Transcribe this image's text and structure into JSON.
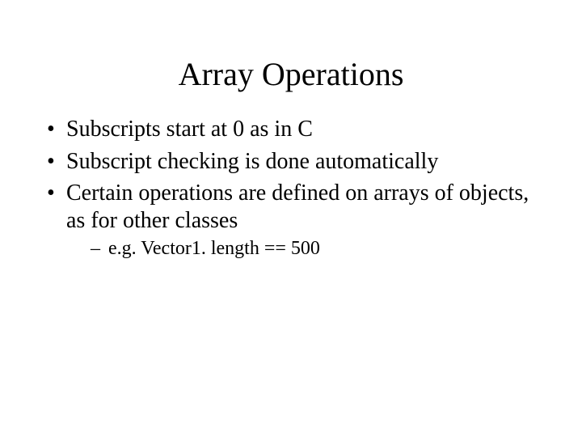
{
  "slide": {
    "title": "Array Operations",
    "bullets": [
      {
        "text": "Subscripts start at 0 as in C"
      },
      {
        "text": "Subscript checking is done automatically"
      },
      {
        "text": "Certain operations are defined on arrays of objects, as for other classes",
        "sub": [
          {
            "text": "e.g. Vector1. length == 500"
          }
        ]
      }
    ],
    "colors": {
      "background": "#ffffff",
      "text": "#000000"
    },
    "fonts": {
      "title_size_pt": 40,
      "body_size_pt": 28,
      "sub_size_pt": 24,
      "family": "Times New Roman"
    }
  }
}
